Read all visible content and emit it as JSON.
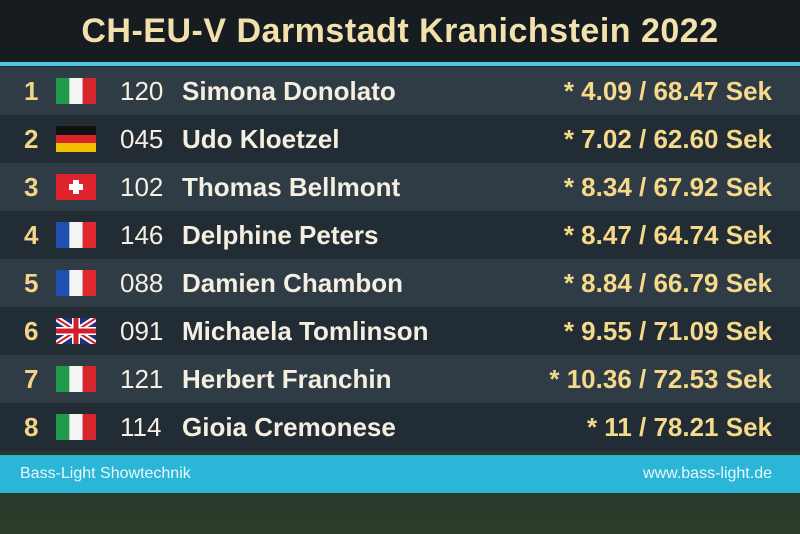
{
  "header": {
    "title": "CH-EU-V Darmstadt Kranichstein 2022"
  },
  "rows": [
    {
      "rank": "1",
      "bib": "120",
      "name": "Simona Donolato",
      "result": "* 4.09 / 68.47 Sek"
    },
    {
      "rank": "2",
      "bib": "045",
      "name": "Udo Kloetzel",
      "result": "* 7.02 / 62.60 Sek"
    },
    {
      "rank": "3",
      "bib": "102",
      "name": "Thomas Bellmont",
      "result": "* 8.34 / 67.92 Sek"
    },
    {
      "rank": "4",
      "bib": "146",
      "name": "Delphine Peters",
      "result": "* 8.47 / 64.74 Sek"
    },
    {
      "rank": "5",
      "bib": "088",
      "name": "Damien Chambon",
      "result": "* 8.84 / 66.79 Sek"
    },
    {
      "rank": "6",
      "bib": "091",
      "name": "Michaela Tomlinson",
      "result": "* 9.55 / 71.09 Sek"
    },
    {
      "rank": "7",
      "bib": "121",
      "name": "Herbert Franchin",
      "result": "* 10.36 / 72.53 Sek"
    },
    {
      "rank": "8",
      "bib": "114",
      "name": "Gioia Cremonese",
      "result": "* 11 / 78.21 Sek"
    }
  ],
  "footer": {
    "left": "Bass-Light Showtechnik",
    "right": "www.bass-light.de"
  }
}
